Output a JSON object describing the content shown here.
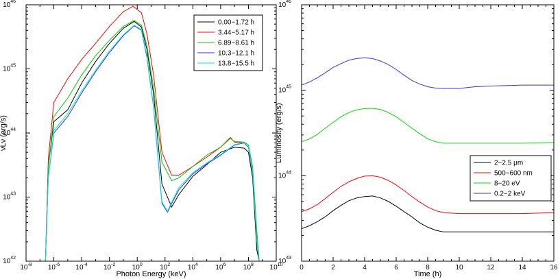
{
  "chart_data": [
    {
      "type": "line",
      "xlabel": "Photon Energy (keV)",
      "ylabel": "νLν (erg/s)",
      "xscale": "log",
      "yscale": "log",
      "xlim": [
        1e-08,
        10000000000.0
      ],
      "ylim": [
        1e+42,
        1e+46
      ],
      "grid": false,
      "legend_position": "top-right",
      "x_ticks": [
        {
          "base": "10",
          "exp": "-8",
          "v": 1e-08
        },
        {
          "base": "10",
          "exp": "-6",
          "v": 1e-06
        },
        {
          "base": "10",
          "exp": "-4",
          "v": 0.0001
        },
        {
          "base": "10",
          "exp": "-2",
          "v": 0.01
        },
        {
          "base": "10",
          "exp": "0",
          "v": 1
        },
        {
          "base": "10",
          "exp": "2",
          "v": 100.0
        },
        {
          "base": "10",
          "exp": "4",
          "v": 10000.0
        },
        {
          "base": "10",
          "exp": "6",
          "v": 1000000.0
        },
        {
          "base": "10",
          "exp": "8",
          "v": 100000000.0
        },
        {
          "base": "10",
          "exp": "10",
          "v": 10000000000.0
        }
      ],
      "y_ticks": [
        {
          "base": "10",
          "exp": "42",
          "v": 1e+42
        },
        {
          "base": "10",
          "exp": "43",
          "v": 1e+43
        },
        {
          "base": "10",
          "exp": "44",
          "v": 1e+44
        },
        {
          "base": "10",
          "exp": "45",
          "v": 1e+45
        },
        {
          "base": "10",
          "exp": "46",
          "v": 1e+46
        }
      ],
      "series": [
        {
          "name": "0.00−1.72 h",
          "color": "#000000",
          "points": [
            [
              2.5e-07,
              1e+42
            ],
            [
              4e-07,
              3e+43
            ],
            [
              1e-06,
              1.5e+44
            ],
            [
              1e-05,
              2.3e+44
            ],
            [
              0.0001,
              6e+44
            ],
            [
              0.001,
              1.3e+45
            ],
            [
              0.01,
              2.5e+45
            ],
            [
              0.1,
              4.3e+45
            ],
            [
              0.6,
              5.5e+45
            ],
            [
              2,
              4.5e+45
            ],
            [
              5,
              2e+45
            ],
            [
              15,
              4e+44
            ],
            [
              60,
              1.6e+43
            ],
            [
              300,
              7e+42
            ],
            [
              1000.0,
              1.1e+43
            ],
            [
              10000.0,
              2.1e+43
            ],
            [
              100000.0,
              3.2e+43
            ],
            [
              1000000.0,
              5e+43
            ],
            [
              10000000.0,
              6e+43
            ],
            [
              50000000.0,
              5.8e+43
            ],
            [
              100000000.0,
              5e+43
            ],
            [
              200000000.0,
              2e+43
            ],
            [
              400000000.0,
              1.5e+42
            ],
            [
              600000000.0,
              1e+42
            ]
          ]
        },
        {
          "name": "3.44−5.17 h",
          "color": "#ff0000",
          "points": [
            [
              2.5e-07,
              1e+42
            ],
            [
              4e-07,
              4e+43
            ],
            [
              1e-06,
              3e+44
            ],
            [
              1e-05,
              7e+44
            ],
            [
              0.0001,
              1.4e+45
            ],
            [
              0.001,
              2.5e+45
            ],
            [
              0.01,
              4.6e+45
            ],
            [
              0.1,
              7.8e+45
            ],
            [
              0.5,
              9.5e+45
            ],
            [
              2,
              7.5e+45
            ],
            [
              5,
              3.5e+45
            ],
            [
              15,
              8e+44
            ],
            [
              60,
              5e+43
            ],
            [
              300,
              2.2e+43
            ],
            [
              1000.0,
              2.2e+43
            ],
            [
              10000.0,
              3e+43
            ],
            [
              100000.0,
              4.2e+43
            ],
            [
              1000000.0,
              6e+43
            ],
            [
              5000000.0,
              8.5e+43
            ],
            [
              10000000.0,
              7.2e+43
            ],
            [
              50000000.0,
              7e+43
            ],
            [
              100000000.0,
              6e+43
            ],
            [
              200000000.0,
              2.5e+43
            ],
            [
              400000000.0,
              2e+42
            ],
            [
              600000000.0,
              1e+42
            ]
          ]
        },
        {
          "name": "6.89−8.61 h",
          "color": "#00cc00",
          "points": [
            [
              2.5e-07,
              1e+42
            ],
            [
              4e-07,
              3e+43
            ],
            [
              1e-06,
              1.8e+44
            ],
            [
              1e-05,
              3.5e+44
            ],
            [
              0.0001,
              8e+44
            ],
            [
              0.001,
              1.6e+45
            ],
            [
              0.01,
              2.8e+45
            ],
            [
              0.1,
              4.6e+45
            ],
            [
              0.6,
              5.7e+45
            ],
            [
              2,
              4.8e+45
            ],
            [
              5,
              2.3e+45
            ],
            [
              15,
              5e+44
            ],
            [
              60,
              3.5e+43
            ],
            [
              300,
              1.8e+43
            ],
            [
              1000.0,
              2e+43
            ],
            [
              10000.0,
              3e+43
            ],
            [
              100000.0,
              4.5e+43
            ],
            [
              1000000.0,
              6e+43
            ],
            [
              5000000.0,
              8.2e+43
            ],
            [
              10000000.0,
              7.4e+43
            ],
            [
              50000000.0,
              7.2e+43
            ],
            [
              100000000.0,
              6.5e+43
            ],
            [
              200000000.0,
              3e+43
            ],
            [
              400000000.0,
              3e+42
            ],
            [
              600000000.0,
              1e+42
            ]
          ]
        },
        {
          "name": "10.3−12.1 h",
          "color": "#3333dd",
          "points": [
            [
              2.5e-07,
              1e+42
            ],
            [
              4e-07,
              2e+43
            ],
            [
              1e-06,
              1e+44
            ],
            [
              1e-05,
              1.8e+44
            ],
            [
              0.0001,
              4.2e+44
            ],
            [
              0.001,
              9e+44
            ],
            [
              0.01,
              1.8e+45
            ],
            [
              0.1,
              3.3e+45
            ],
            [
              0.6,
              4.7e+45
            ],
            [
              2,
              4e+45
            ],
            [
              5,
              1.5e+45
            ],
            [
              15,
              2.5e+44
            ],
            [
              60,
              8e+42
            ],
            [
              150,
              5.8e+42
            ],
            [
              400,
              9e+42
            ],
            [
              1000.0,
              1.3e+43
            ],
            [
              10000.0,
              2.3e+43
            ],
            [
              100000.0,
              3.3e+43
            ],
            [
              1000000.0,
              4.5e+43
            ],
            [
              10000000.0,
              6.5e+43
            ],
            [
              50000000.0,
              7e+43
            ],
            [
              100000000.0,
              6e+43
            ],
            [
              200000000.0,
              2.5e+43
            ],
            [
              400000000.0,
              2e+42
            ],
            [
              600000000.0,
              1e+42
            ]
          ]
        },
        {
          "name": "13.8−15.5 h",
          "color": "#00e5ee",
          "points": [
            [
              2.5e-07,
              1e+42
            ],
            [
              4e-07,
              2e+43
            ],
            [
              1e-06,
              1.1e+44
            ],
            [
              1e-05,
              2e+44
            ],
            [
              0.0001,
              4.5e+44
            ],
            [
              0.001,
              9.5e+44
            ],
            [
              0.01,
              1.9e+45
            ],
            [
              0.1,
              3.4e+45
            ],
            [
              0.6,
              4.8e+45
            ],
            [
              2,
              4.1e+45
            ],
            [
              5,
              1.6e+45
            ],
            [
              15,
              2.6e+44
            ],
            [
              60,
              8.5e+42
            ],
            [
              150,
              6e+42
            ],
            [
              400,
              9.5e+42
            ],
            [
              1000.0,
              1.4e+43
            ],
            [
              10000.0,
              2.4e+43
            ],
            [
              100000.0,
              3.4e+43
            ],
            [
              1000000.0,
              4.6e+43
            ],
            [
              10000000.0,
              6.6e+43
            ],
            [
              50000000.0,
              7.1e+43
            ],
            [
              100000000.0,
              6.1e+43
            ],
            [
              200000000.0,
              2.6e+43
            ],
            [
              400000000.0,
              2.1e+42
            ],
            [
              600000000.0,
              1e+42
            ]
          ]
        }
      ]
    },
    {
      "type": "line",
      "xlabel": "Time (h)",
      "ylabel": "Luminosity (erg/s)",
      "xscale": "linear",
      "yscale": "log",
      "xlim": [
        0,
        16
      ],
      "ylim": [
        1e+43,
        1e+46
      ],
      "grid": false,
      "legend_position": "lower-right",
      "x_ticks": [
        "0",
        "2",
        "4",
        "6",
        "8",
        "10",
        "12",
        "14",
        "16"
      ],
      "y_ticks": [
        {
          "base": "10",
          "exp": "43",
          "v": 1e+43
        },
        {
          "base": "10",
          "exp": "44",
          "v": 1e+44
        },
        {
          "base": "10",
          "exp": "45",
          "v": 1e+45
        },
        {
          "base": "10",
          "exp": "46",
          "v": 1e+46
        }
      ],
      "series": [
        {
          "name": "2−2.5 μm",
          "color": "#000000",
          "points": [
            [
              0,
              2.4e+43
            ],
            [
              0.5,
              2.6e+43
            ],
            [
              1,
              2.9e+43
            ],
            [
              1.5,
              3.3e+43
            ],
            [
              2,
              3.9e+43
            ],
            [
              2.5,
              4.5e+43
            ],
            [
              3,
              5.1e+43
            ],
            [
              3.5,
              5.5e+43
            ],
            [
              4,
              5.7e+43
            ],
            [
              4.5,
              5.8e+43
            ],
            [
              5,
              5.5e+43
            ],
            [
              5.5,
              5e+43
            ],
            [
              6,
              4.4e+43
            ],
            [
              6.5,
              3.8e+43
            ],
            [
              7,
              3.3e+43
            ],
            [
              7.5,
              2.8e+43
            ],
            [
              8,
              2.5e+43
            ],
            [
              8.5,
              2.3e+43
            ],
            [
              9,
              2.2e+43
            ],
            [
              10,
              2.2e+43
            ],
            [
              12,
              2.2e+43
            ],
            [
              14,
              2.2e+43
            ],
            [
              16,
              2.2e+43
            ]
          ]
        },
        {
          "name": "500−600 nm",
          "color": "#ff0000",
          "points": [
            [
              0,
              3.8e+43
            ],
            [
              0.5,
              4.1e+43
            ],
            [
              1,
              4.6e+43
            ],
            [
              1.5,
              5.4e+43
            ],
            [
              2,
              6.4e+43
            ],
            [
              2.5,
              7.5e+43
            ],
            [
              3,
              8.5e+43
            ],
            [
              3.5,
              9.3e+43
            ],
            [
              4,
              9.9e+43
            ],
            [
              4.5,
              1e+44
            ],
            [
              5,
              9.6e+43
            ],
            [
              5.5,
              8.8e+43
            ],
            [
              6,
              7.8e+43
            ],
            [
              6.5,
              6.7e+43
            ],
            [
              7,
              5.7e+43
            ],
            [
              7.5,
              4.9e+43
            ],
            [
              8,
              4.3e+43
            ],
            [
              8.5,
              3.9e+43
            ],
            [
              9,
              3.7e+43
            ],
            [
              10,
              3.6e+43
            ],
            [
              12,
              3.6e+43
            ],
            [
              14,
              3.6e+43
            ],
            [
              16,
              3.7e+43
            ]
          ]
        },
        {
          "name": "8−20 eV",
          "color": "#00dd00",
          "points": [
            [
              0,
              2.5e+44
            ],
            [
              0.5,
              2.7e+44
            ],
            [
              1,
              3.05e+44
            ],
            [
              1.5,
              3.6e+44
            ],
            [
              2,
              4.2e+44
            ],
            [
              2.5,
              4.9e+44
            ],
            [
              3,
              5.5e+44
            ],
            [
              3.5,
              5.9e+44
            ],
            [
              4,
              6.1e+44
            ],
            [
              4.5,
              6.15e+44
            ],
            [
              5,
              5.95e+44
            ],
            [
              5.5,
              5.5e+44
            ],
            [
              6,
              4.9e+44
            ],
            [
              6.5,
              4.2e+44
            ],
            [
              7,
              3.6e+44
            ],
            [
              7.5,
              3.1e+44
            ],
            [
              8,
              2.7e+44
            ],
            [
              8.5,
              2.5e+44
            ],
            [
              9,
              2.4e+44
            ],
            [
              10,
              2.4e+44
            ],
            [
              12,
              2.4e+44
            ],
            [
              14,
              2.4e+44
            ],
            [
              16,
              2.45e+44
            ]
          ]
        },
        {
          "name": "0.2−2 keV",
          "color": "#3333dd",
          "points": [
            [
              0,
              1.15e+45
            ],
            [
              0.5,
              1.25e+45
            ],
            [
              1,
              1.4e+45
            ],
            [
              1.5,
              1.6e+45
            ],
            [
              2,
              1.85e+45
            ],
            [
              2.5,
              2.05e+45
            ],
            [
              3,
              2.25e+45
            ],
            [
              3.5,
              2.35e+45
            ],
            [
              4,
              2.4e+45
            ],
            [
              4.5,
              2.35e+45
            ],
            [
              5,
              2.2e+45
            ],
            [
              5.5,
              2e+45
            ],
            [
              6,
              1.75e+45
            ],
            [
              6.5,
              1.5e+45
            ],
            [
              7,
              1.3e+45
            ],
            [
              7.5,
              1.18e+45
            ],
            [
              8,
              1.1e+45
            ],
            [
              8.5,
              1.06e+45
            ],
            [
              9,
              1.05e+45
            ],
            [
              10,
              1.05e+45
            ],
            [
              11,
              1.1e+45
            ],
            [
              12,
              1.12e+45
            ],
            [
              14,
              1.15e+45
            ],
            [
              16,
              1.15e+45
            ]
          ]
        }
      ]
    }
  ]
}
